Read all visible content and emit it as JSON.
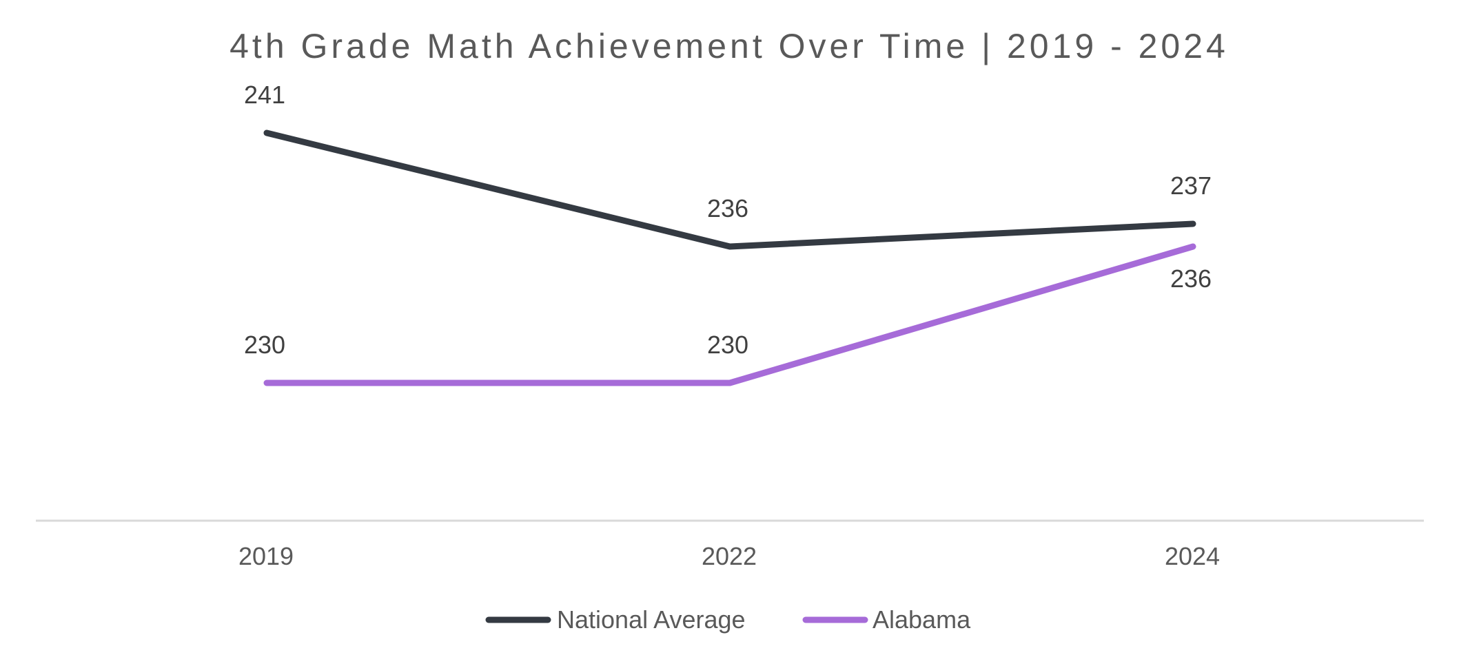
{
  "chart_data": {
    "type": "line",
    "title": "4th Grade Math Achievement Over Time | 2019 - 2024",
    "xlabel": "",
    "ylabel": "",
    "categories": [
      "2019",
      "2022",
      "2024"
    ],
    "series": [
      {
        "name": "National Average",
        "values": [
          241,
          236,
          237
        ],
        "labels": [
          "241",
          "236",
          "237"
        ],
        "color": "#343A42",
        "label_position": "above"
      },
      {
        "name": "Alabama",
        "values": [
          230,
          230,
          236
        ],
        "labels": [
          "230",
          "230",
          "236"
        ],
        "color": "#A66BD8",
        "label_position": [
          "above",
          "above",
          "below"
        ]
      }
    ],
    "ylim": [
      224,
      243
    ],
    "grid": false,
    "legend": "bottom-center",
    "axis_color": "#D9D9D9"
  }
}
